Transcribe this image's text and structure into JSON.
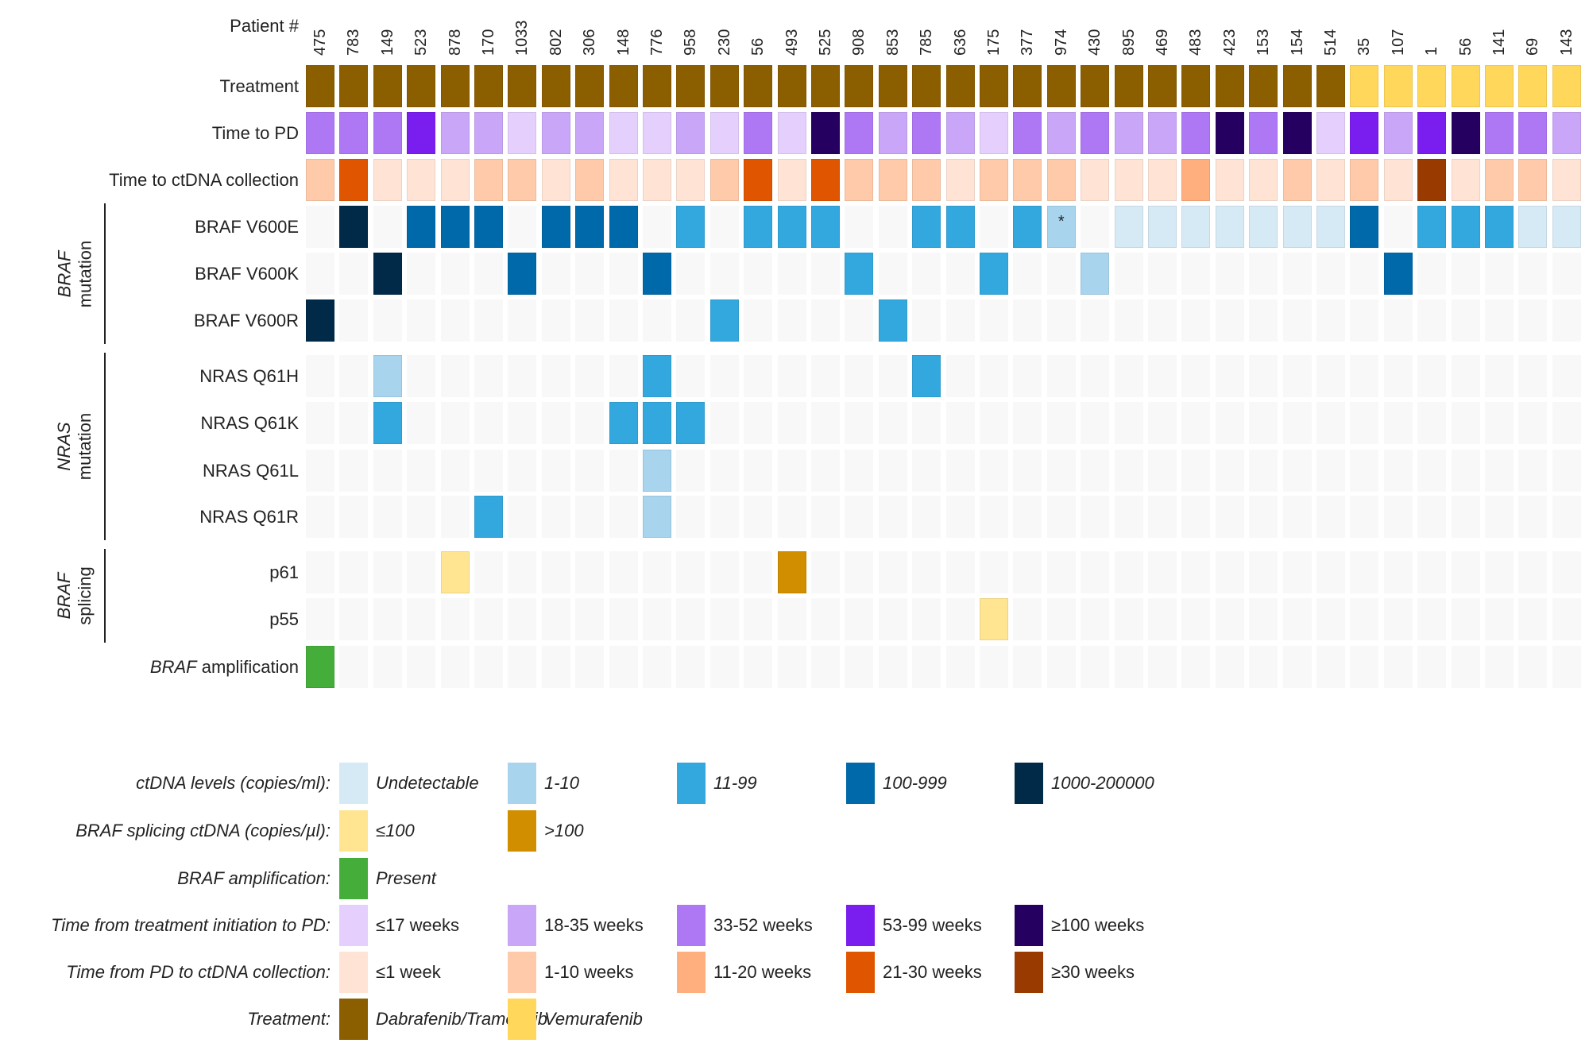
{
  "chart_data": {
    "type": "heatmap",
    "column_header_label": "Patient #",
    "patients": [
      "475",
      "783",
      "149",
      "523",
      "878",
      "170",
      "1033",
      "802",
      "306",
      "148",
      "776",
      "958",
      "230",
      "56",
      "493",
      "525",
      "908",
      "853",
      "785",
      "636",
      "175",
      "377",
      "974",
      "430",
      "895",
      "469",
      "483",
      "423",
      "153",
      "154",
      "514",
      "35",
      "107",
      "1",
      "56",
      "141",
      "69",
      "143"
    ],
    "rows": [
      {
        "key": "treatment",
        "label": "Treatment",
        "scale": "treatment",
        "values": [
          "DT",
          "DT",
          "DT",
          "DT",
          "DT",
          "DT",
          "DT",
          "DT",
          "DT",
          "DT",
          "DT",
          "DT",
          "DT",
          "DT",
          "DT",
          "DT",
          "DT",
          "DT",
          "DT",
          "DT",
          "DT",
          "DT",
          "DT",
          "DT",
          "DT",
          "DT",
          "DT",
          "DT",
          "DT",
          "DT",
          "DT",
          "V",
          "V",
          "V",
          "V",
          "V",
          "V",
          "V"
        ]
      },
      {
        "key": "pd",
        "label": "Time to PD",
        "scale": "pd",
        "values": [
          3,
          3,
          3,
          4,
          2,
          2,
          1,
          2,
          2,
          1,
          1,
          2,
          1,
          3,
          1,
          5,
          3,
          2,
          3,
          2,
          1,
          3,
          2,
          3,
          2,
          2,
          3,
          5,
          3,
          5,
          1,
          4,
          2,
          4,
          5,
          3,
          3,
          2
        ]
      },
      {
        "key": "collection",
        "label": "Time to ctDNA collection",
        "scale": "collection",
        "values": [
          2,
          4,
          1,
          1,
          1,
          2,
          2,
          1,
          2,
          1,
          1,
          1,
          2,
          4,
          1,
          4,
          2,
          2,
          2,
          1,
          2,
          2,
          2,
          1,
          1,
          1,
          3,
          1,
          1,
          2,
          1,
          2,
          1,
          5,
          1,
          2,
          2,
          1
        ]
      },
      {
        "key": "v600e",
        "label": "BRAF V600E",
        "scale": "ctdna",
        "values": [
          0,
          4,
          0,
          3,
          3,
          3,
          0,
          3,
          3,
          3,
          0,
          2,
          0,
          2,
          2,
          2,
          0,
          0,
          2,
          2,
          0,
          2,
          1,
          0,
          "U",
          "U",
          "U",
          "U",
          "U",
          "U",
          "U",
          3,
          0,
          2,
          2,
          2,
          "U",
          "U"
        ]
      },
      {
        "key": "v600k",
        "label": "BRAF V600K",
        "scale": "ctdna",
        "values": [
          0,
          0,
          4,
          0,
          0,
          0,
          3,
          0,
          0,
          0,
          3,
          0,
          0,
          0,
          0,
          0,
          2,
          0,
          0,
          0,
          2,
          0,
          0,
          1,
          0,
          0,
          0,
          0,
          0,
          0,
          0,
          0,
          3,
          0,
          0,
          0,
          0,
          0
        ]
      },
      {
        "key": "v600r",
        "label": "BRAF V600R",
        "scale": "ctdna",
        "values": [
          4,
          0,
          0,
          0,
          0,
          0,
          0,
          0,
          0,
          0,
          0,
          0,
          2,
          0,
          0,
          0,
          0,
          2,
          0,
          0,
          0,
          0,
          0,
          0,
          0,
          0,
          0,
          0,
          0,
          0,
          0,
          0,
          0,
          0,
          0,
          0,
          0,
          0
        ]
      },
      {
        "key": "q61h",
        "label": "NRAS Q61H",
        "scale": "ctdna",
        "values": [
          0,
          0,
          1,
          0,
          0,
          0,
          0,
          0,
          0,
          0,
          2,
          0,
          0,
          0,
          0,
          0,
          0,
          0,
          2,
          0,
          0,
          0,
          0,
          0,
          0,
          0,
          0,
          0,
          0,
          0,
          0,
          0,
          0,
          0,
          0,
          0,
          0,
          0
        ]
      },
      {
        "key": "q61k",
        "label": "NRAS Q61K",
        "scale": "ctdna",
        "values": [
          0,
          0,
          2,
          0,
          0,
          0,
          0,
          0,
          0,
          2,
          2,
          2,
          0,
          0,
          0,
          0,
          0,
          0,
          0,
          0,
          0,
          0,
          0,
          0,
          0,
          0,
          0,
          0,
          0,
          0,
          0,
          0,
          0,
          0,
          0,
          0,
          0,
          0
        ]
      },
      {
        "key": "q61l",
        "label": "NRAS Q61L",
        "scale": "ctdna",
        "values": [
          0,
          0,
          0,
          0,
          0,
          0,
          0,
          0,
          0,
          0,
          1,
          0,
          0,
          0,
          0,
          0,
          0,
          0,
          0,
          0,
          0,
          0,
          0,
          0,
          0,
          0,
          0,
          0,
          0,
          0,
          0,
          0,
          0,
          0,
          0,
          0,
          0,
          0
        ]
      },
      {
        "key": "q61r",
        "label": "NRAS Q61R",
        "scale": "ctdna",
        "values": [
          0,
          0,
          0,
          0,
          0,
          2,
          0,
          0,
          0,
          0,
          1,
          0,
          0,
          0,
          0,
          0,
          0,
          0,
          0,
          0,
          0,
          0,
          0,
          0,
          0,
          0,
          0,
          0,
          0,
          0,
          0,
          0,
          0,
          0,
          0,
          0,
          0,
          0
        ]
      },
      {
        "key": "p61",
        "label": "p61",
        "scale": "splicing",
        "values": [
          0,
          0,
          0,
          0,
          1,
          0,
          0,
          0,
          0,
          0,
          0,
          0,
          0,
          0,
          2,
          0,
          0,
          0,
          0,
          0,
          0,
          0,
          0,
          0,
          0,
          0,
          0,
          0,
          0,
          0,
          0,
          0,
          0,
          0,
          0,
          0,
          0,
          0
        ]
      },
      {
        "key": "p55",
        "label": "p55",
        "scale": "splicing",
        "values": [
          0,
          0,
          0,
          0,
          0,
          0,
          0,
          0,
          0,
          0,
          0,
          0,
          0,
          0,
          0,
          0,
          0,
          0,
          0,
          0,
          1,
          0,
          0,
          0,
          0,
          0,
          0,
          0,
          0,
          0,
          0,
          0,
          0,
          0,
          0,
          0,
          0,
          0
        ]
      },
      {
        "key": "amp",
        "label_italic": "BRAF",
        "label": " amplification",
        "scale": "amp",
        "values": [
          1,
          0,
          0,
          0,
          0,
          0,
          0,
          0,
          0,
          0,
          0,
          0,
          0,
          0,
          0,
          0,
          0,
          0,
          0,
          0,
          0,
          0,
          0,
          0,
          0,
          0,
          0,
          0,
          0,
          0,
          0,
          0,
          0,
          0,
          0,
          0,
          0,
          0
        ]
      }
    ],
    "annotations": [
      {
        "row": "v600e",
        "patient_index": 22,
        "text": "*"
      }
    ],
    "groups": [
      {
        "italic": "BRAF",
        "label": "mutation",
        "rows": [
          "v600e",
          "v600r"
        ]
      },
      {
        "italic": "NRAS",
        "label": "mutation",
        "rows": [
          "q61h",
          "q61r"
        ]
      },
      {
        "italic": "BRAF",
        "label": "splicing",
        "rows": [
          "p61",
          "p55"
        ]
      }
    ],
    "empty_color": "#f8f8f8",
    "scales": {
      "ctdna": {
        "title": "ctDNA levels (copies/ml):",
        "items": [
          {
            "code": "U",
            "label": "Undetectable",
            "color": "#d6eaf6"
          },
          {
            "code": 1,
            "label": "1-10",
            "color": "#a8d4ee"
          },
          {
            "code": 2,
            "label": "11-99",
            "color": "#33a8de"
          },
          {
            "code": 3,
            "label": "100-999",
            "color": "#0069aa"
          },
          {
            "code": 4,
            "label": "1000-200000",
            "color": "#002a48"
          }
        ]
      },
      "splicing": {
        "title_italic": "BRAF",
        "title": " splicing ctDNA (copies/µl):",
        "items": [
          {
            "code": 1,
            "label": "≤100",
            "color": "#ffe592"
          },
          {
            "code": 2,
            "label": ">100",
            "color": "#d18f00"
          }
        ]
      },
      "amp": {
        "title_italic": "BRAF",
        "title": " amplification:",
        "items": [
          {
            "code": 1,
            "label": "Present",
            "color": "#45ae3a"
          }
        ]
      },
      "pd": {
        "title": "Time from treatment initiation to PD:",
        "items": [
          {
            "code": 1,
            "label": "≤17 weeks",
            "color": "#e5cffd"
          },
          {
            "code": 2,
            "label": "18-35 weeks",
            "color": "#c9a6f8"
          },
          {
            "code": 3,
            "label": "33-52 weeks",
            "color": "#ae78f5"
          },
          {
            "code": 4,
            "label": "53-99 weeks",
            "color": "#7a1ef0"
          },
          {
            "code": 5,
            "label": "≥100 weeks",
            "color": "#260060"
          }
        ]
      },
      "collection": {
        "title": "Time from PD to ctDNA collection:",
        "items": [
          {
            "code": 1,
            "label": "≤1 week",
            "color": "#ffe4d6"
          },
          {
            "code": 2,
            "label": "1-10 weeks",
            "color": "#ffcaaa"
          },
          {
            "code": 3,
            "label": "11-20 weeks",
            "color": "#ffae7e"
          },
          {
            "code": 4,
            "label": "21-30 weeks",
            "color": "#e05500"
          },
          {
            "code": 5,
            "label": "≥30 weeks",
            "color": "#993a00"
          }
        ]
      },
      "treatment": {
        "title": "Treatment:",
        "items": [
          {
            "code": "DT",
            "label": "Dabrafenib/Trametinib",
            "color": "#8b5e00"
          },
          {
            "code": "V",
            "label": "Vemurafenib",
            "color": "#ffd75a"
          }
        ]
      }
    },
    "legend_order": [
      "ctdna",
      "splicing",
      "amp",
      "pd",
      "collection",
      "treatment"
    ],
    "legend_italic_labels": [
      "ctdna",
      "splicing",
      "amp",
      "pd",
      "collection",
      "treatment"
    ],
    "legend_upright_label_scales": [
      "pd",
      "collection"
    ]
  }
}
